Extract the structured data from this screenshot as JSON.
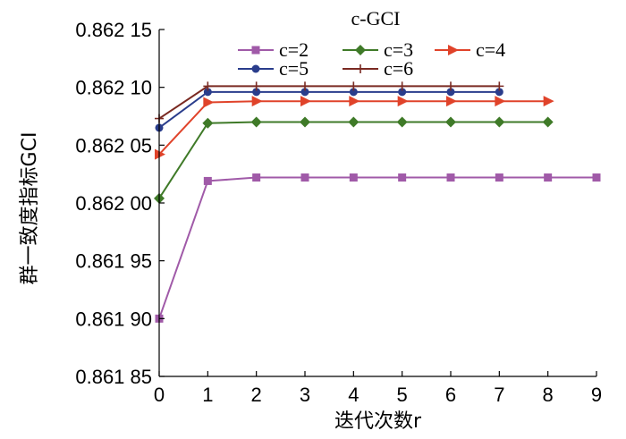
{
  "chart_data": {
    "type": "line",
    "title": "",
    "xlabel": "迭代次数r",
    "ylabel": "群一致度指标GCI",
    "x_ticks": [
      "0",
      "1",
      "2",
      "3",
      "4",
      "5",
      "6",
      "7",
      "8",
      "9"
    ],
    "y_ticks": [
      "0.861 85",
      "0.861 90",
      "0.861 95",
      "0.862 00",
      "0.862 05",
      "0.862 10",
      "0.862 15"
    ],
    "xlim": [
      0,
      9
    ],
    "ylim": [
      0.86185,
      0.86215
    ],
    "grid": false,
    "legend": {
      "title": "c-GCI",
      "placement": "top-center",
      "entries": [
        "c=2",
        "c=3",
        "c=4",
        "c=5",
        "c=6"
      ]
    },
    "series": [
      {
        "name": "c=2",
        "color": "#a05aa8",
        "marker": "square",
        "x": [
          0,
          1,
          2,
          3,
          4,
          5,
          6,
          7,
          8,
          9
        ],
        "y": [
          0.8619,
          0.862019,
          0.862022,
          0.862022,
          0.862022,
          0.862022,
          0.862022,
          0.862022,
          0.862022,
          0.862022
        ]
      },
      {
        "name": "c=3",
        "color": "#3f7a28",
        "marker": "diamond",
        "x": [
          0,
          1,
          2,
          3,
          4,
          5,
          6,
          7,
          8
        ],
        "y": [
          0.862004,
          0.862069,
          0.86207,
          0.86207,
          0.86207,
          0.86207,
          0.86207,
          0.86207,
          0.86207
        ]
      },
      {
        "name": "c=4",
        "color": "#e0432a",
        "marker": "triangle-right",
        "x": [
          0,
          1,
          2,
          3,
          4,
          5,
          6,
          7,
          8
        ],
        "y": [
          0.862042,
          0.862087,
          0.862088,
          0.862088,
          0.862088,
          0.862088,
          0.862088,
          0.862088,
          0.862088
        ]
      },
      {
        "name": "c=5",
        "color": "#2a3d8c",
        "marker": "circle",
        "x": [
          0,
          1,
          2,
          3,
          4,
          5,
          6,
          7
        ],
        "y": [
          0.862065,
          0.862096,
          0.862096,
          0.862096,
          0.862096,
          0.862096,
          0.862096,
          0.862096
        ]
      },
      {
        "name": "c=6",
        "color": "#7a2a22",
        "marker": "plus",
        "x": [
          0,
          1,
          2,
          3,
          4,
          5,
          6,
          7
        ],
        "y": [
          0.862073,
          0.862101,
          0.862101,
          0.862101,
          0.862101,
          0.862101,
          0.862101,
          0.862101
        ]
      }
    ]
  }
}
